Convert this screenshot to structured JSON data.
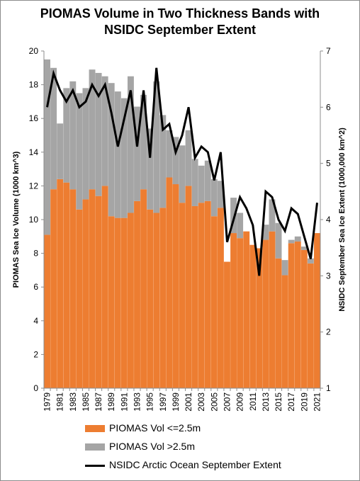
{
  "chart_data": {
    "type": "bar",
    "title": "PIOMAS Volume in Two Thickness Bands with NSIDC September Extent",
    "title_lines": [
      "PIOMAS Volume in Two Thickness Bands with",
      "NSIDC September Extent"
    ],
    "ylabel": "PIOMAS Sea Ice Volume (1000 km^3)",
    "y2label": "NSIDC September Sea Ice Extent (1000,000 km^2)",
    "ylim": [
      0,
      20
    ],
    "yticks": [
      "0",
      "2",
      "4",
      "6",
      "8",
      "10",
      "12",
      "14",
      "16",
      "18",
      "20"
    ],
    "y2lim": [
      1,
      7
    ],
    "y2ticks": [
      "1",
      "2",
      "3",
      "4",
      "5",
      "6",
      "7"
    ],
    "x": [
      1979,
      1980,
      1981,
      1982,
      1983,
      1984,
      1985,
      1986,
      1987,
      1988,
      1989,
      1990,
      1991,
      1992,
      1993,
      1994,
      1995,
      1996,
      1997,
      1998,
      1999,
      2000,
      2001,
      2002,
      2003,
      2004,
      2005,
      2006,
      2007,
      2008,
      2009,
      2010,
      2011,
      2012,
      2013,
      2014,
      2015,
      2016,
      2017,
      2018,
      2019,
      2020,
      2021
    ],
    "xtick_labels": [
      "1979",
      "1981",
      "1983",
      "1985",
      "1987",
      "1989",
      "1991",
      "1993",
      "1995",
      "1997",
      "1999",
      "2001",
      "2003",
      "2005",
      "2007",
      "2009",
      "2011",
      "2013",
      "2015",
      "2017",
      "2019",
      "2021"
    ],
    "stacked": true,
    "series": [
      {
        "name": "PIOMAS Vol <=2.5m",
        "kind": "bar",
        "axis": "left",
        "color": "#ed7d31",
        "values": [
          9.1,
          11.8,
          12.4,
          12.2,
          11.8,
          10.6,
          11.2,
          11.8,
          11.4,
          12.0,
          10.2,
          10.1,
          10.1,
          10.4,
          11.1,
          11.8,
          10.6,
          10.4,
          10.7,
          12.5,
          12.1,
          11.0,
          12.0,
          10.8,
          11.0,
          11.1,
          10.2,
          10.7,
          7.5,
          9.2,
          8.9,
          9.3,
          8.5,
          8.3,
          8.8,
          9.3,
          7.7,
          6.7,
          8.6,
          8.7,
          8.2,
          7.4,
          9.2
        ]
      },
      {
        "name": "PIOMAS Vol >2.5m",
        "kind": "bar",
        "axis": "left",
        "color": "#a5a5a5",
        "values": [
          10.4,
          7.2,
          3.3,
          5.6,
          6.4,
          6.9,
          6.6,
          7.1,
          7.3,
          6.5,
          7.9,
          7.5,
          7.1,
          8.1,
          5.6,
          5.6,
          4.8,
          7.8,
          5.5,
          2.8,
          2.8,
          3.4,
          3.3,
          2.8,
          2.2,
          2.4,
          2.2,
          1.6,
          0.0,
          2.1,
          1.5,
          0.0,
          0.0,
          0.0,
          0.9,
          1.9,
          2.1,
          0.9,
          0.2,
          0.3,
          0.2,
          0.3,
          0.0
        ]
      },
      {
        "name": "NSIDC Arctic Ocean September Extent",
        "kind": "line",
        "axis": "right",
        "color": "#000000",
        "values": [
          6.0,
          6.6,
          6.3,
          6.1,
          6.3,
          6.0,
          6.1,
          6.4,
          6.2,
          6.4,
          5.9,
          5.3,
          5.8,
          6.3,
          5.3,
          6.3,
          5.1,
          6.7,
          5.6,
          5.7,
          5.2,
          5.5,
          6.0,
          5.1,
          5.3,
          5.2,
          4.7,
          5.2,
          3.6,
          4.0,
          4.4,
          4.2,
          3.9,
          3.0,
          4.5,
          4.4,
          4.0,
          3.8,
          4.2,
          4.1,
          3.7,
          3.3,
          4.3
        ]
      }
    ],
    "legend_position": "bottom",
    "grid": false
  }
}
